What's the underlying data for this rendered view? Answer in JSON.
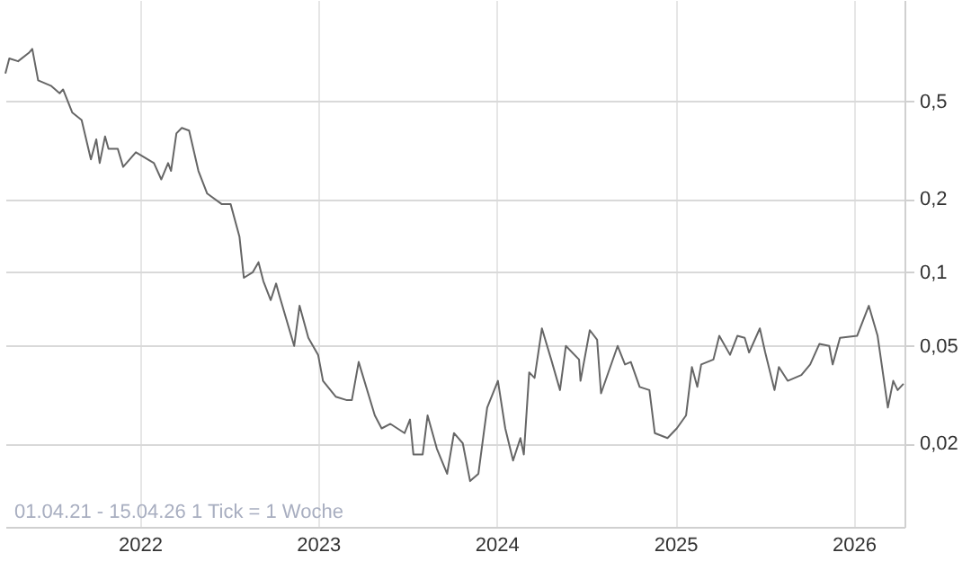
{
  "chart_data": {
    "type": "line",
    "log": "y",
    "grid": true,
    "marker": "none",
    "line_style": "solid",
    "annotations": [
      "01.04.21 - 15.04.26   1 Tick = 1 Woche"
    ],
    "xlim": [
      "2021-04-01",
      "2026-04-15"
    ],
    "xticks": [
      "2022",
      "2023",
      "2024",
      "2025",
      "2026"
    ],
    "ylim": [
      0.0091,
      1.3
    ],
    "yticks": [
      {
        "value": 0.02,
        "label": "0,02"
      },
      {
        "value": 0.05,
        "label": "0,05"
      },
      {
        "value": 0.1,
        "label": "0,1"
      },
      {
        "value": 0.2,
        "label": "0,2"
      },
      {
        "value": 0.5,
        "label": "0,5"
      }
    ],
    "x": [
      "2021-04-01",
      "2021-04-09",
      "2021-04-27",
      "2021-05-19",
      "2021-05-26",
      "2021-06-07",
      "2021-07-03",
      "2021-07-21",
      "2021-07-28",
      "2021-08-16",
      "2021-09-04",
      "2021-09-23",
      "2021-10-04",
      "2021-10-11",
      "2021-10-22",
      "2021-10-29",
      "2021-11-17",
      "2021-11-28",
      "2021-12-24",
      "2022-01-30",
      "2022-02-14",
      "2022-02-28",
      "2022-03-06",
      "2022-03-17",
      "2022-03-28",
      "2022-04-12",
      "2022-05-01",
      "2022-05-19",
      "2022-06-18",
      "2022-07-06",
      "2022-07-24",
      "2022-08-02",
      "2022-08-20",
      "2022-09-01",
      "2022-09-11",
      "2022-09-26",
      "2022-10-07",
      "2022-10-14",
      "2022-11-13",
      "2022-11-24",
      "2022-12-12",
      "2023-01-01",
      "2023-01-11",
      "2023-02-06",
      "2023-03-01",
      "2023-03-11",
      "2023-03-25",
      "2023-04-27",
      "2023-05-11",
      "2023-05-29",
      "2023-06-27",
      "2023-07-08",
      "2023-07-15",
      "2023-08-03",
      "2023-08-13",
      "2023-09-01",
      "2023-09-22",
      "2023-10-06",
      "2023-10-24",
      "2023-11-08",
      "2023-11-25",
      "2023-12-06",
      "2023-12-13",
      "2024-01-04",
      "2024-01-19",
      "2024-02-04",
      "2024-02-19",
      "2024-02-26",
      "2024-03-08",
      "2024-03-19",
      "2024-04-03",
      "2024-04-22",
      "2024-05-10",
      "2024-05-22",
      "2024-06-18",
      "2024-06-21",
      "2024-07-10",
      "2024-07-25",
      "2024-08-02",
      "2024-09-05",
      "2024-09-20",
      "2024-10-02",
      "2024-10-20",
      "2024-11-09",
      "2024-11-20",
      "2024-12-16",
      "2025-01-04",
      "2025-01-23",
      "2025-02-04",
      "2025-02-15",
      "2025-02-23",
      "2025-03-20",
      "2025-04-01",
      "2025-04-23",
      "2025-05-08",
      "2025-05-23",
      "2025-06-01",
      "2025-06-23",
      "2025-07-04",
      "2025-07-23",
      "2025-08-01",
      "2025-08-19",
      "2025-09-16",
      "2025-10-04",
      "2025-10-23",
      "2025-11-12",
      "2025-11-19",
      "2025-12-04",
      "2026-01-08",
      "2026-02-01",
      "2026-02-19",
      "2026-03-12",
      "2026-03-23",
      "2026-04-01",
      "2026-04-13"
    ],
    "series": [
      {
        "color": "#666666",
        "values": [
          0.65,
          0.75,
          0.73,
          0.79,
          0.82,
          0.61,
          0.58,
          0.54,
          0.56,
          0.45,
          0.42,
          0.29,
          0.35,
          0.28,
          0.36,
          0.32,
          0.32,
          0.27,
          0.31,
          0.28,
          0.24,
          0.28,
          0.26,
          0.37,
          0.39,
          0.38,
          0.26,
          0.21,
          0.19,
          0.19,
          0.14,
          0.095,
          0.1,
          0.11,
          0.092,
          0.077,
          0.09,
          0.08,
          0.05,
          0.073,
          0.054,
          0.046,
          0.036,
          0.031,
          0.03,
          0.03,
          0.043,
          0.026,
          0.023,
          0.024,
          0.022,
          0.025,
          0.018,
          0.018,
          0.026,
          0.019,
          0.015,
          0.022,
          0.02,
          0.014,
          0.015,
          0.022,
          0.028,
          0.036,
          0.023,
          0.017,
          0.021,
          0.018,
          0.039,
          0.037,
          0.059,
          0.044,
          0.033,
          0.05,
          0.044,
          0.036,
          0.058,
          0.053,
          0.032,
          0.05,
          0.042,
          0.043,
          0.034,
          0.033,
          0.022,
          0.021,
          0.023,
          0.026,
          0.041,
          0.034,
          0.042,
          0.044,
          0.055,
          0.046,
          0.055,
          0.054,
          0.047,
          0.059,
          0.047,
          0.033,
          0.041,
          0.036,
          0.038,
          0.042,
          0.051,
          0.05,
          0.042,
          0.054,
          0.055,
          0.073,
          0.055,
          0.028,
          0.036,
          0.033,
          0.035
        ]
      }
    ]
  }
}
